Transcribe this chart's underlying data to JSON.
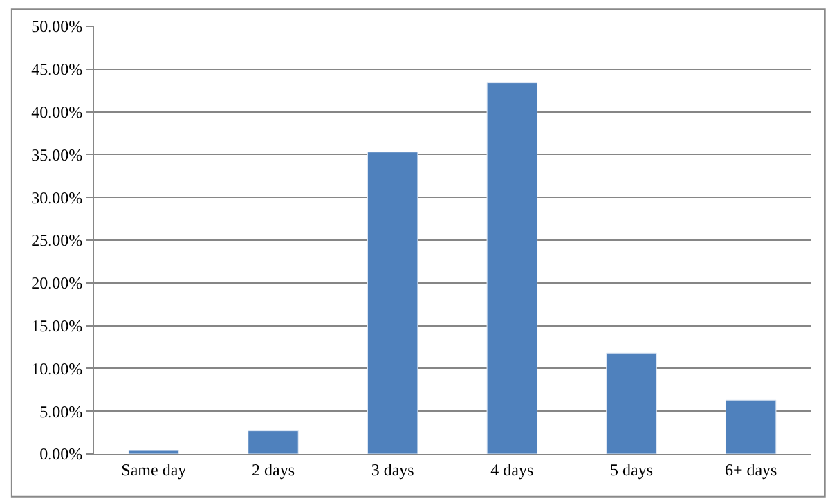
{
  "chart_data": {
    "type": "bar",
    "categories": [
      "Same day",
      "2 days",
      "3 days",
      "4 days",
      "5 days",
      "6+ days"
    ],
    "series": [
      {
        "color": "#4f81bd",
        "values": [
          0.4,
          2.7,
          35.3,
          43.4,
          11.8,
          6.3
        ]
      }
    ],
    "ylim": [
      0,
      50
    ],
    "yticks": [
      {
        "value": 0,
        "label": "0.00%"
      },
      {
        "value": 5,
        "label": "5.00%"
      },
      {
        "value": 10,
        "label": "10.00%"
      },
      {
        "value": 15,
        "label": "15.00%"
      },
      {
        "value": 20,
        "label": "20.00%"
      },
      {
        "value": 25,
        "label": "25.00%"
      },
      {
        "value": 30,
        "label": "30.00%"
      },
      {
        "value": 35,
        "label": "35.00%"
      },
      {
        "value": 40,
        "label": "40.00%"
      },
      {
        "value": 45,
        "label": "45.00%"
      },
      {
        "value": 50,
        "label": "50.00%"
      }
    ],
    "grid": "y"
  }
}
